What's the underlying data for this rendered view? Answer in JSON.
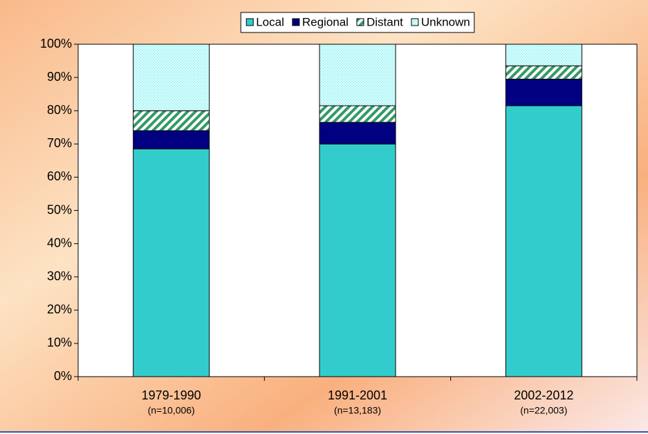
{
  "chart_data": {
    "type": "stacked_bar",
    "categories": [
      "1979-1990",
      "1991-2001",
      "2002-2012"
    ],
    "category_sublabels": [
      "(n=10,006)",
      "(n=13,183)",
      "(n=22,003)"
    ],
    "series": [
      {
        "name": "Local",
        "color": "#33cccc",
        "pattern": "solid",
        "values": [
          68.5,
          70,
          81.5
        ]
      },
      {
        "name": "Regional",
        "color": "#000080",
        "pattern": "solid",
        "values": [
          5.5,
          6.5,
          8
        ]
      },
      {
        "name": "Distant",
        "color": "#339966",
        "pattern": "diagonal",
        "values": [
          6,
          5,
          4
        ]
      },
      {
        "name": "Unknown",
        "color": "#ccffff",
        "pattern": "dots",
        "values": [
          20,
          18.5,
          6.5
        ]
      }
    ],
    "ylim": [
      0,
      100
    ],
    "yticks": [
      {
        "value": 0,
        "label": "0%"
      },
      {
        "value": 10,
        "label": "10%"
      },
      {
        "value": 20,
        "label": "20%"
      },
      {
        "value": 30,
        "label": "30%"
      },
      {
        "value": 40,
        "label": "40%"
      },
      {
        "value": 50,
        "label": "50%"
      },
      {
        "value": 60,
        "label": "60%"
      },
      {
        "value": 70,
        "label": "70%"
      },
      {
        "value": 80,
        "label": "80%"
      },
      {
        "value": 90,
        "label": "90%"
      },
      {
        "value": 100,
        "label": "100%"
      }
    ],
    "legend": "top"
  }
}
